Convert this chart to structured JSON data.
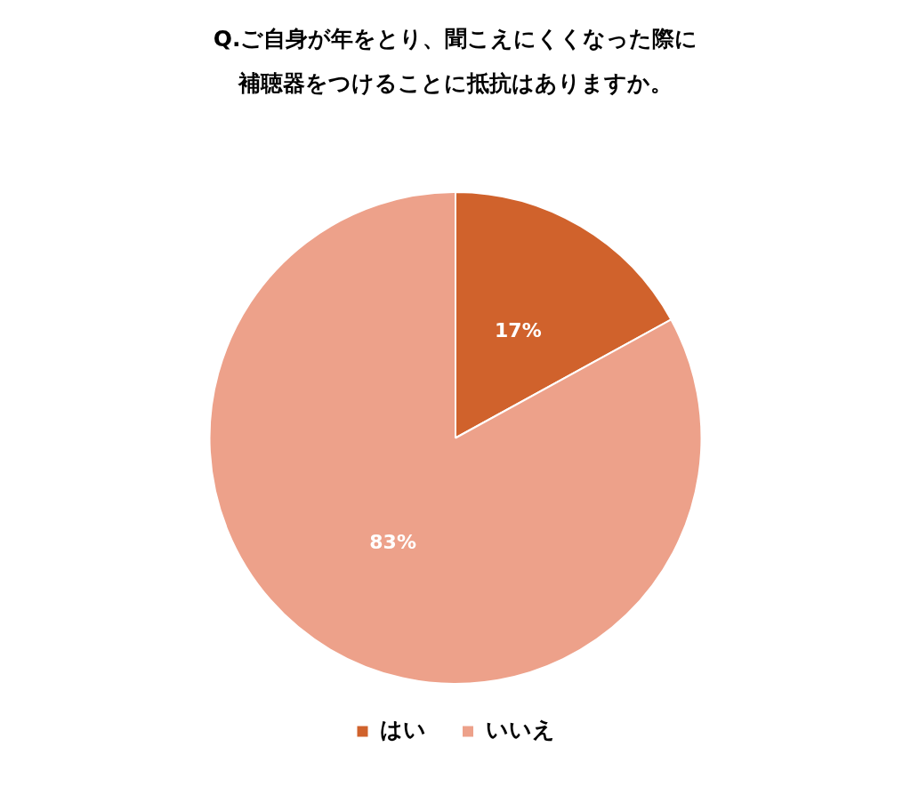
{
  "chart_data": {
    "type": "pie",
    "title": "Q.ご自身が年をとり、聞こえにくくなった際に補聴器をつけることに抵抗はありますか。",
    "categories": [
      "はい",
      "いいえ"
    ],
    "values": [
      17,
      83
    ],
    "colors": [
      "#d0622c",
      "#eda18a"
    ],
    "value_labels": [
      "17%",
      "83%"
    ],
    "legend": "bottom"
  }
}
